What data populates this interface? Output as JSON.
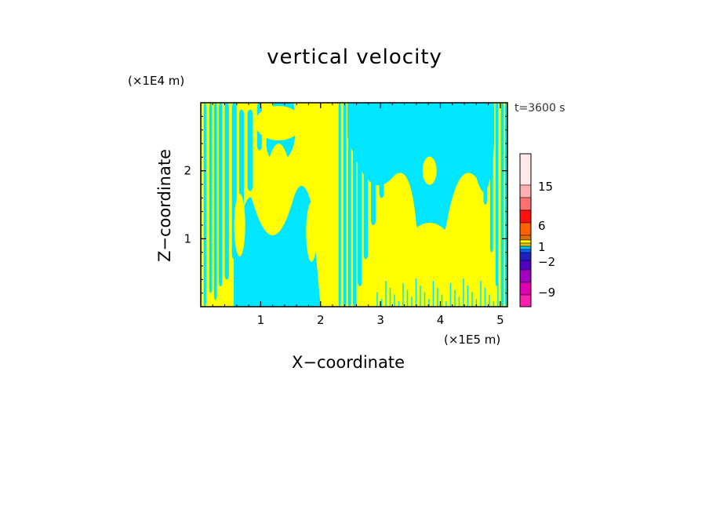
{
  "chart_data": {
    "type": "heatmap",
    "title": "vertical velocity",
    "xlabel": "X−coordinate",
    "ylabel": "Z−coordinate",
    "x_unit": "(×1E5 m)",
    "y_unit": "(×1E4 m)",
    "annotation": "t=3600 s",
    "xlim": [
      0,
      5.12
    ],
    "ylim": [
      0,
      3.0
    ],
    "x_ticks": [
      1,
      2,
      3,
      4,
      5
    ],
    "x_tick_labels": [
      "1",
      "2",
      "3",
      "4",
      "5"
    ],
    "y_ticks": [
      1,
      2
    ],
    "y_tick_labels": [
      "1",
      "2"
    ],
    "field_colors": {
      "negative": "#00e6ff",
      "positive": "#ffff00"
    },
    "colorbar": {
      "tick_labels": [
        "15",
        "6",
        "1",
        "−2",
        "−9"
      ],
      "levels_top_to_bottom": [
        {
          "color": "#ffe8e8"
        },
        {
          "color": "#ffb0b0"
        },
        {
          "color": "#ff7070"
        },
        {
          "color": "#ff1010"
        },
        {
          "color": "#ff6000"
        },
        {
          "color": "#e07000"
        },
        {
          "color": "#ffff00"
        },
        {
          "color": "#e0c000"
        },
        {
          "color": "#00c0ff"
        },
        {
          "color": "#1060ff"
        },
        {
          "color": "#2020c0"
        },
        {
          "color": "#5000c0"
        },
        {
          "color": "#a000c0"
        },
        {
          "color": "#e000b0"
        },
        {
          "color": "#ff20b0"
        }
      ]
    }
  }
}
